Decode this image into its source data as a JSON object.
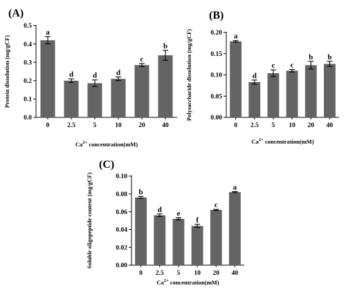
{
  "chart_data": [
    {
      "type": "bar",
      "panel": "(A)",
      "categories": [
        "0",
        "2.5",
        "5",
        "10",
        "20",
        "40"
      ],
      "values": [
        0.42,
        0.2,
        0.186,
        0.21,
        0.285,
        0.338
      ],
      "errors": [
        0.02,
        0.01,
        0.018,
        0.01,
        0.008,
        0.027
      ],
      "significance": [
        "a",
        "d",
        "d",
        "d",
        "c",
        "b"
      ],
      "ylabel": "Protein dissolution (mg/gCF)",
      "xlabel_main": "Ca",
      "xlabel_sup": "2+",
      "xlabel_tail": " concentration(mM)",
      "ylim": [
        0,
        0.5
      ],
      "yticks": [
        "0.0",
        "0.1",
        "0.2",
        "0.3",
        "0.4",
        "0.5"
      ],
      "bar_color": "#646464",
      "grid": false
    },
    {
      "type": "bar",
      "panel": "(B)",
      "categories": [
        "0",
        "2.5",
        "5",
        "10",
        "20",
        "40"
      ],
      "values": [
        0.179,
        0.083,
        0.104,
        0.11,
        0.123,
        0.126
      ],
      "errors": [
        0.002,
        0.005,
        0.008,
        0.003,
        0.009,
        0.006
      ],
      "significance": [
        "a",
        "d",
        "c",
        "c",
        "b",
        "b"
      ],
      "ylabel": "Polysaccharide dissolution (mg/gCF)",
      "xlabel_main": "Ca",
      "xlabel_sup": "2+",
      "xlabel_tail": " concentration(mM)",
      "ylim": [
        0,
        0.2
      ],
      "yticks": [
        "0.00",
        "0.05",
        "0.10",
        "0.15",
        "0.20"
      ],
      "bar_color": "#646464",
      "grid": false
    },
    {
      "type": "bar",
      "panel": "(C)",
      "categories": [
        "0",
        "2.5",
        "5",
        "10",
        "20",
        "40"
      ],
      "values": [
        0.076,
        0.056,
        0.052,
        0.044,
        0.062,
        0.082
      ],
      "errors": [
        0.0012,
        0.0015,
        0.0012,
        0.0018,
        0.0006,
        0.0006
      ],
      "significance": [
        "b",
        "d",
        "e",
        "f",
        "c",
        "a"
      ],
      "ylabel": "Soluble oligopeptide content (mg/gCF)",
      "xlabel_main": "Ca",
      "xlabel_sup": "2+",
      "xlabel_tail": " concentration(mM)",
      "ylim": [
        0,
        0.1
      ],
      "yticks": [
        "0.00",
        "0.02",
        "0.04",
        "0.06",
        "0.08",
        "0.10"
      ],
      "bar_color": "#646464",
      "grid": false
    }
  ]
}
